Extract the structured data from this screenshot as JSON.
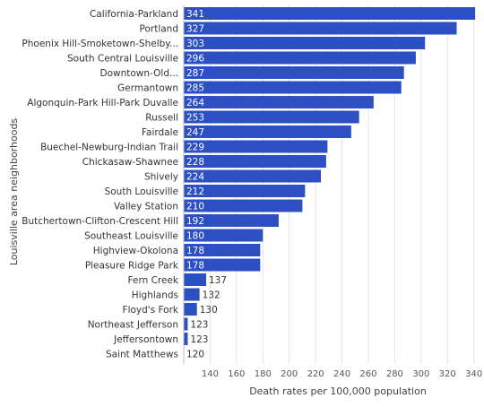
{
  "chart_data": {
    "type": "bar",
    "orientation": "horizontal",
    "xlabel": "Death rates per 100,000 population",
    "ylabel": "Louisville area neighborhoods",
    "xlim": [
      120,
      345
    ],
    "xticks": [
      140,
      160,
      180,
      200,
      220,
      240,
      260,
      280,
      300,
      320,
      340
    ],
    "grid": true,
    "bar_color": "#2d4fc4",
    "categories": [
      "California-Parkland",
      "Portland",
      "Phoenix Hill-Smoketown-Shelby...",
      "South Central Louisville",
      "Downtown-Old...",
      "Germantown",
      "Algonquin-Park Hill-Park Duvalle",
      "Russell",
      "Fairdale",
      "Buechel-Newburg-Indian Trail",
      "Chickasaw-Shawnee",
      "Shively",
      "South Louisville",
      "Valley Station",
      "Butchertown-Clifton-Crescent Hill",
      "Southeast Louisville",
      "Highview-Okolona",
      "Pleasure Ridge Park",
      "Fern Creek",
      "Highlands",
      "Floyd's Fork",
      "Northeast Jefferson",
      "Jeffersontown",
      "Saint Matthews"
    ],
    "values": [
      341,
      327,
      303,
      296,
      287,
      285,
      264,
      253,
      247,
      229,
      228,
      224,
      212,
      210,
      192,
      180,
      178,
      178,
      137,
      132,
      130,
      123,
      123,
      120
    ]
  }
}
